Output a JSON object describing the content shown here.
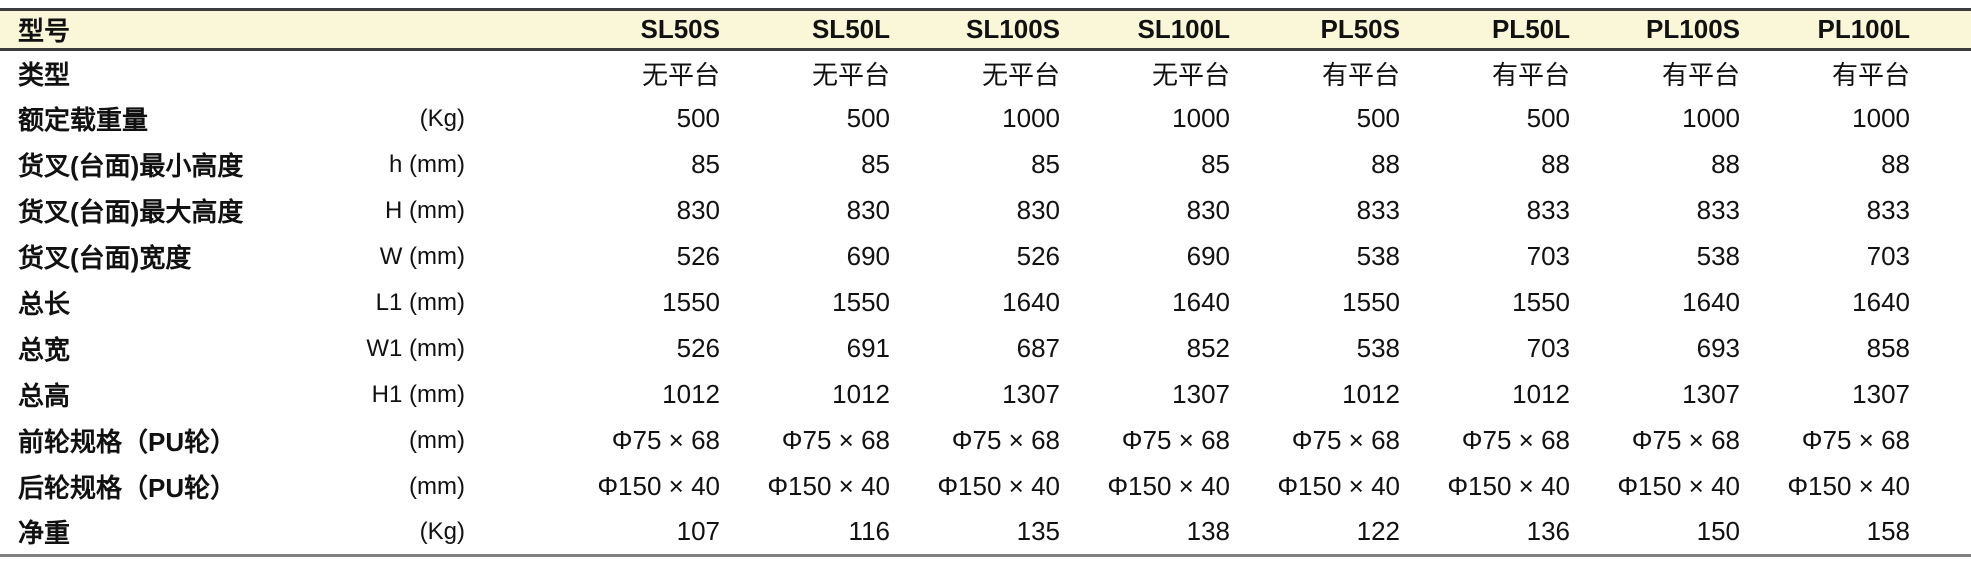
{
  "colors": {
    "header_bg": "#FAF6D8",
    "border_dark": "#3C3C3C",
    "border_bottom": "#808080",
    "text": "#111111"
  },
  "table": {
    "header": {
      "label": "型号",
      "models": [
        "SL50S",
        "SL50L",
        "SL100S",
        "SL100L",
        "PL50S",
        "PL50L",
        "PL100S",
        "PL100L"
      ]
    },
    "rows": [
      {
        "label": "类型",
        "unit": "",
        "values": [
          "无平台",
          "无平台",
          "无平台",
          "无平台",
          "有平台",
          "有平台",
          "有平台",
          "有平台"
        ]
      },
      {
        "label": "额定载重量",
        "unit": "(Kg)",
        "values": [
          "500",
          "500",
          "1000",
          "1000",
          "500",
          "500",
          "1000",
          "1000"
        ]
      },
      {
        "label": "货叉(台面)最小高度",
        "unit": "h (mm)",
        "values": [
          "85",
          "85",
          "85",
          "85",
          "88",
          "88",
          "88",
          "88"
        ]
      },
      {
        "label": "货叉(台面)最大高度",
        "unit": "H (mm)",
        "values": [
          "830",
          "830",
          "830",
          "830",
          "833",
          "833",
          "833",
          "833"
        ]
      },
      {
        "label": "货叉(台面)宽度",
        "unit": "W (mm)",
        "values": [
          "526",
          "690",
          "526",
          "690",
          "538",
          "703",
          "538",
          "703"
        ]
      },
      {
        "label": "总长",
        "unit": "L1 (mm)",
        "values": [
          "1550",
          "1550",
          "1640",
          "1640",
          "1550",
          "1550",
          "1640",
          "1640"
        ]
      },
      {
        "label": "总宽",
        "unit": "W1 (mm)",
        "values": [
          "526",
          "691",
          "687",
          "852",
          "538",
          "703",
          "693",
          "858"
        ]
      },
      {
        "label": "总高",
        "unit": "H1 (mm)",
        "values": [
          "1012",
          "1012",
          "1307",
          "1307",
          "1012",
          "1012",
          "1307",
          "1307"
        ]
      },
      {
        "label": "前轮规格（PU轮）",
        "unit": "(mm)",
        "values": [
          "Φ75 × 68",
          "Φ75 × 68",
          "Φ75 × 68",
          "Φ75 × 68",
          "Φ75 × 68",
          "Φ75 × 68",
          "Φ75 × 68",
          "Φ75 × 68"
        ]
      },
      {
        "label": "后轮规格（PU轮）",
        "unit": "(mm)",
        "values": [
          "Φ150 × 40",
          "Φ150 × 40",
          "Φ150 × 40",
          "Φ150 × 40",
          "Φ150 × 40",
          "Φ150 × 40",
          "Φ150 × 40",
          "Φ150 × 40"
        ]
      },
      {
        "label": "净重",
        "unit": "(Kg)",
        "values": [
          "107",
          "116",
          "135",
          "138",
          "122",
          "136",
          "150",
          "158"
        ]
      }
    ]
  }
}
